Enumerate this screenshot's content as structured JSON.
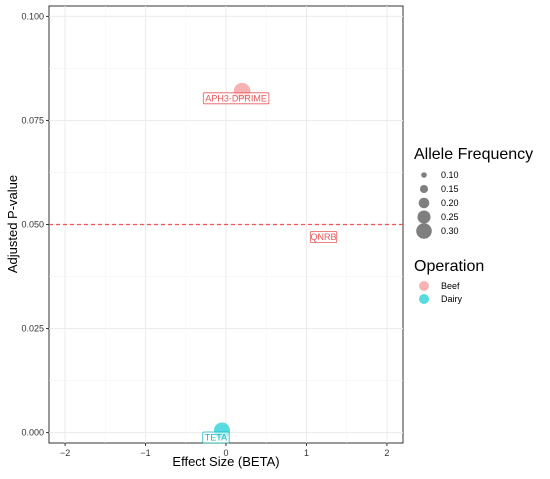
{
  "chart_data": {
    "type": "scatter",
    "xlabel": "Effect Size (BETA)",
    "ylabel": "Adjusted P-value",
    "xlim": [
      -2.2,
      2.2
    ],
    "ylim": [
      -0.0025,
      0.1025
    ],
    "x_ticks": [
      -2,
      -1,
      0,
      1,
      2
    ],
    "x_tick_labels": [
      "−2",
      "−1",
      "0",
      "1",
      "2"
    ],
    "y_ticks": [
      0,
      0.025,
      0.05,
      0.075,
      0.1
    ],
    "y_tick_labels": [
      "0.000",
      "0.025",
      "0.050",
      "0.075",
      "0.100"
    ],
    "grid": true,
    "threshold": {
      "y": 0.05,
      "color": "#E8595A",
      "style": "dashed"
    },
    "points": [
      {
        "label": "APH3-DPRIME",
        "x": 0.2,
        "y": 0.082,
        "operation": "Beef",
        "allele_frequency": 0.33
      },
      {
        "label": "QNRB",
        "x": 1.15,
        "y": 0.047,
        "operation": "Beef",
        "allele_frequency": 0.05
      },
      {
        "label": "TETA",
        "x": -0.05,
        "y": 0.0005,
        "operation": "Dairy",
        "allele_frequency": 0.28
      }
    ],
    "legend": {
      "placement": "right",
      "size": {
        "title": "Allele Frequency",
        "entries": [
          {
            "label": "0.10",
            "value": 0.1
          },
          {
            "label": "0.15",
            "value": 0.15
          },
          {
            "label": "0.20",
            "value": 0.2
          },
          {
            "label": "0.25",
            "value": 0.25
          },
          {
            "label": "0.30",
            "value": 0.3
          }
        ]
      },
      "color": {
        "title": "Operation",
        "entries": [
          {
            "label": "Beef",
            "color": "#F8A5A6"
          },
          {
            "label": "Dairy",
            "color": "#39D3DA"
          }
        ]
      }
    },
    "colors": {
      "Beef": "#F8A5A6",
      "Beef_text": "#E8595A",
      "Dairy": "#39D3DA",
      "Dairy_text": "#16B7BE",
      "size_legend": "#7F7F7F"
    }
  }
}
